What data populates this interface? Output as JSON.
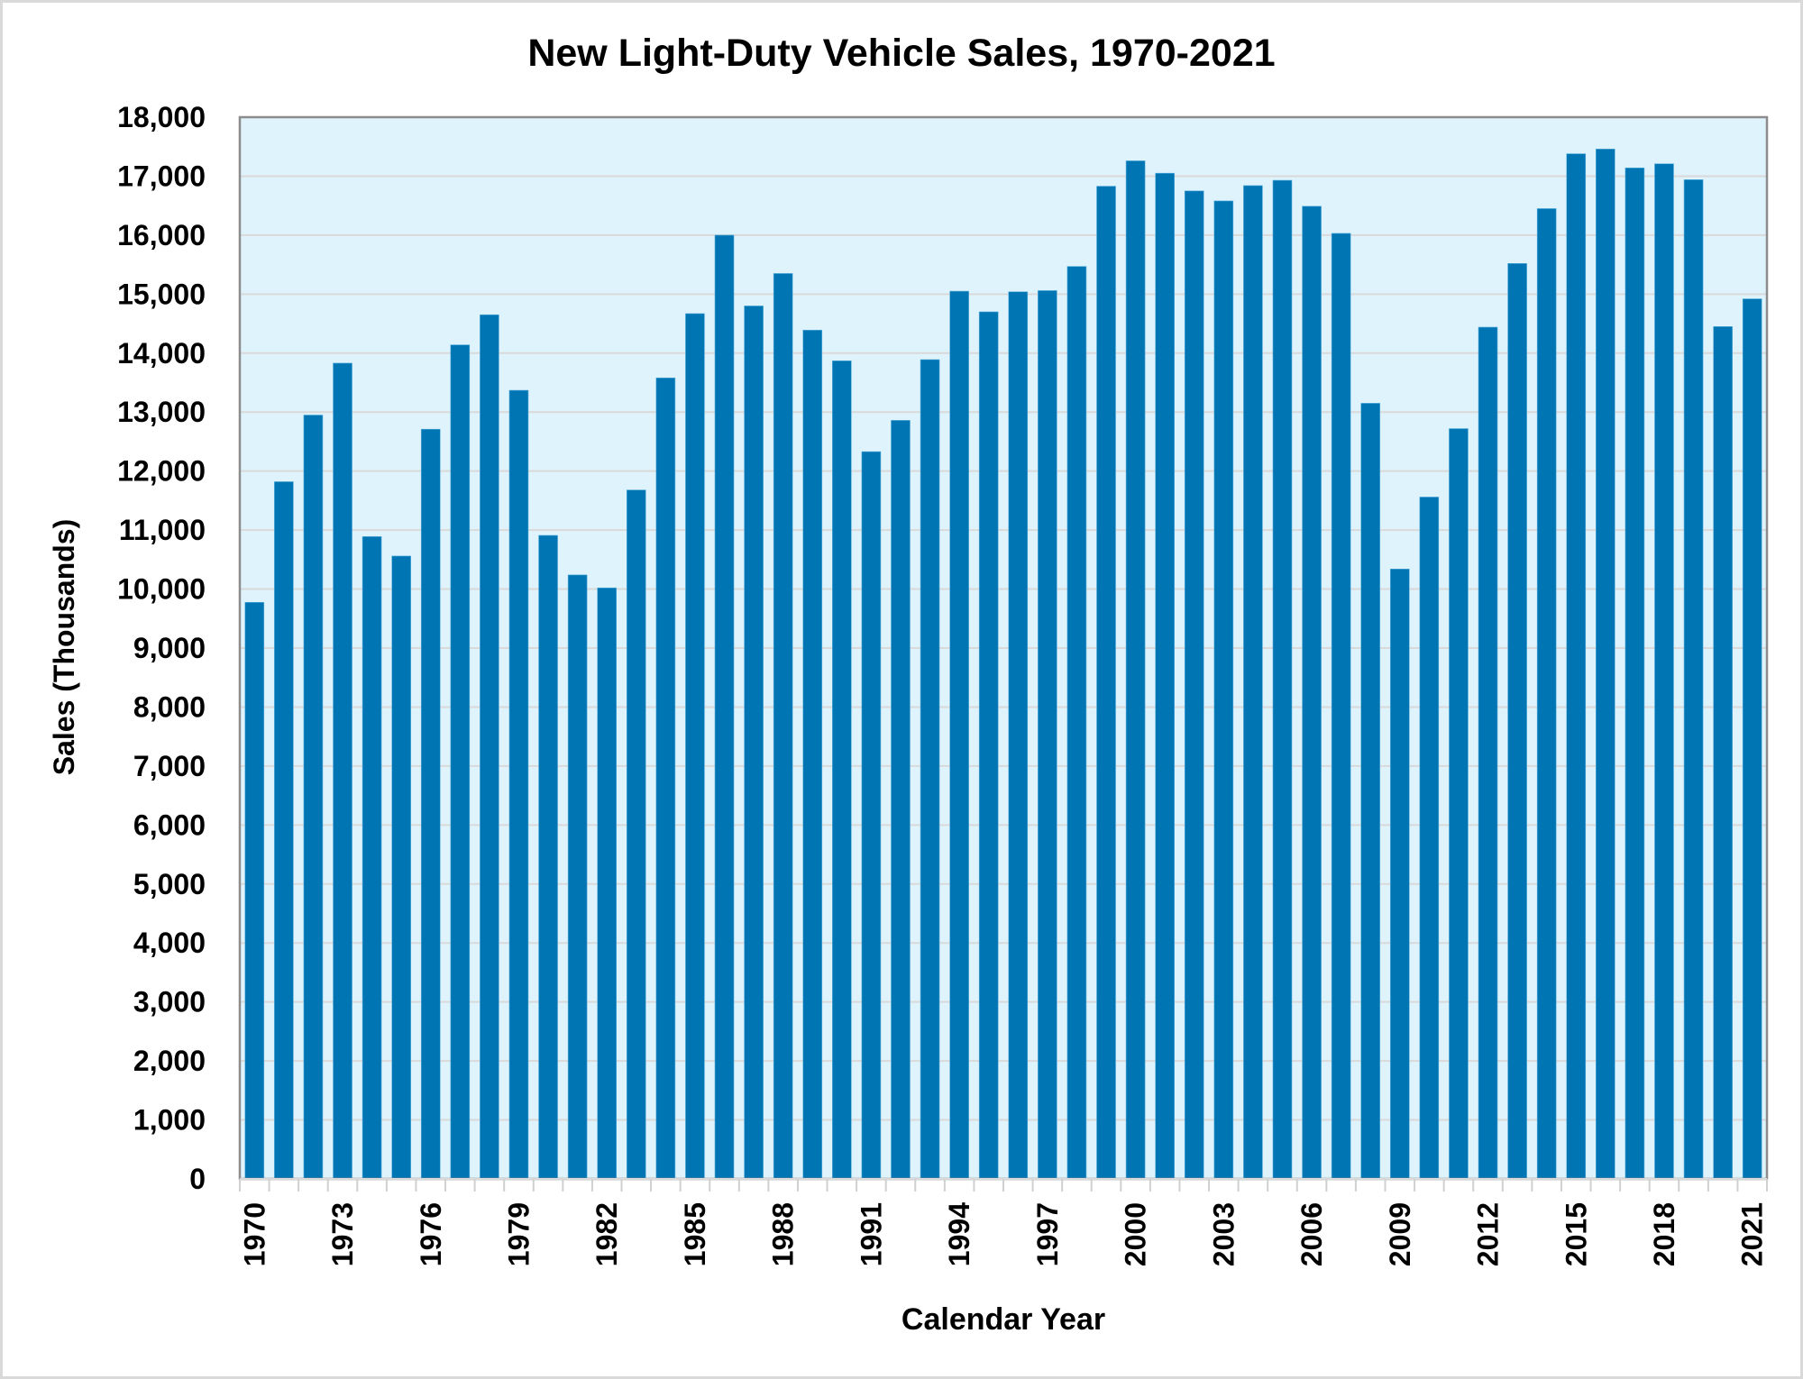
{
  "chart_data": {
    "type": "bar",
    "title": "New Light-Duty Vehicle Sales, 1970-2021",
    "xlabel": "Calendar Year",
    "ylabel": "Sales (Thousands)",
    "ylim": [
      0,
      18000
    ],
    "ytick_step": 1000,
    "yticks": [
      "0",
      "1,000",
      "2,000",
      "3,000",
      "4,000",
      "5,000",
      "6,000",
      "7,000",
      "8,000",
      "9,000",
      "10,000",
      "11,000",
      "12,000",
      "13,000",
      "14,000",
      "15,000",
      "16,000",
      "17,000",
      "18,000"
    ],
    "xtick_labels_every": 3,
    "grid": true,
    "legend": "none",
    "colors": {
      "bar": "#0075b3",
      "plot_background": "#dff3fc",
      "gridline": "#d9d9d9",
      "plot_border": "#8c8c8c",
      "frame_border": "#d9d9d9"
    },
    "categories": [
      "1970",
      "1971",
      "1972",
      "1973",
      "1974",
      "1975",
      "1976",
      "1977",
      "1978",
      "1979",
      "1980",
      "1981",
      "1982",
      "1983",
      "1984",
      "1985",
      "1986",
      "1987",
      "1988",
      "1989",
      "1990",
      "1991",
      "1992",
      "1993",
      "1994",
      "1995",
      "1996",
      "1997",
      "1998",
      "1999",
      "2000",
      "2001",
      "2002",
      "2003",
      "2004",
      "2005",
      "2006",
      "2007",
      "2008",
      "2009",
      "2010",
      "2011",
      "2012",
      "2013",
      "2014",
      "2015",
      "2016",
      "2017",
      "2018",
      "2019",
      "2020",
      "2021"
    ],
    "values": [
      9775,
      11820,
      12950,
      13830,
      10890,
      10560,
      12710,
      14140,
      14650,
      13370,
      10910,
      10240,
      10020,
      11680,
      13580,
      14670,
      16000,
      14800,
      15350,
      14390,
      13870,
      12330,
      12860,
      13890,
      15050,
      14700,
      15040,
      15060,
      15470,
      16830,
      17260,
      17050,
      16750,
      16580,
      16840,
      16930,
      16490,
      16030,
      13150,
      10340,
      11560,
      12720,
      14440,
      15520,
      16450,
      17380,
      17460,
      17140,
      17210,
      16940,
      14450,
      14920
    ]
  }
}
